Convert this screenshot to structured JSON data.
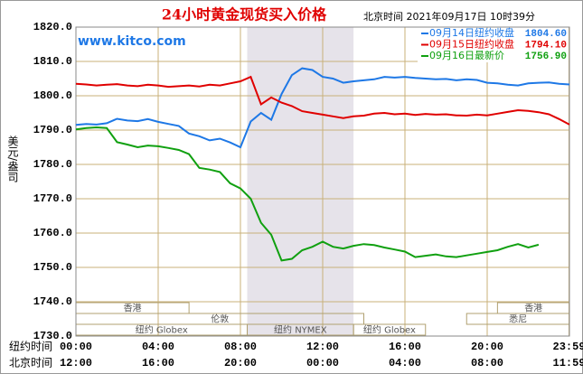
{
  "chart_data": {
    "type": "line",
    "title": "24小时黄金现货买入价格",
    "timestamp": "北京时间  2021年09月17日 10时39分",
    "site": "www.kitco.com",
    "y_label": "美元/盎司",
    "x_label": "纽约时间",
    "x2_label": "北京时间",
    "xlim": [
      0,
      24
    ],
    "ylim": [
      1730,
      1820
    ],
    "yticks": [
      {
        "value": 1820,
        "label": "1820.0"
      },
      {
        "value": 1810,
        "label": "1810.0"
      },
      {
        "value": 1800,
        "label": "1800.0"
      },
      {
        "value": 1790,
        "label": "1790.0"
      },
      {
        "value": 1780,
        "label": "1780.0"
      },
      {
        "value": 1770,
        "label": "1770.0"
      },
      {
        "value": 1760,
        "label": "1760.0"
      },
      {
        "value": 1750,
        "label": "1750.0"
      },
      {
        "value": 1740,
        "label": "1740.0"
      },
      {
        "value": 1730,
        "label": "1730.0"
      }
    ],
    "xticks": [
      {
        "value": 0,
        "label": "00:00"
      },
      {
        "value": 4,
        "label": "04:00"
      },
      {
        "value": 8,
        "label": "08:00"
      },
      {
        "value": 12,
        "label": "12:00"
      },
      {
        "value": 16,
        "label": "16:00"
      },
      {
        "value": 20,
        "label": "20:00"
      },
      {
        "value": 23.98,
        "label": "23:59"
      }
    ],
    "x2ticks": [
      {
        "value": 0,
        "label": "12:00"
      },
      {
        "value": 4,
        "label": "16:00"
      },
      {
        "value": 8,
        "label": "20:00"
      },
      {
        "value": 12,
        "label": "00:00"
      },
      {
        "value": 16,
        "label": "04:00"
      },
      {
        "value": 20,
        "label": "08:00"
      },
      {
        "value": 23.98,
        "label": "11:59"
      }
    ],
    "grid": true,
    "shaded": [
      8.33,
      13.5
    ],
    "session_rows": [
      [
        {
          "label": "香港",
          "start": 0,
          "end": 5.5
        },
        {
          "label": "香港",
          "start": 20.5,
          "end": 24
        }
      ],
      [
        {
          "label": "伦敦",
          "start": 0,
          "end": 14
        },
        {
          "label": "悉尼",
          "start": 19,
          "end": 24
        }
      ],
      [
        {
          "label": "纽约 Globex",
          "start": 0,
          "end": 8.33
        },
        {
          "label": "纽约 NYMEX",
          "start": 8.33,
          "end": 13.5
        },
        {
          "label": "纽约 Globex",
          "start": 13.5,
          "end": 17
        }
      ]
    ],
    "x": [
      0,
      0.5,
      1,
      1.5,
      2,
      2.5,
      3,
      3.5,
      4,
      4.5,
      5,
      5.5,
      6,
      6.5,
      7,
      7.5,
      8,
      8.5,
      9,
      9.5,
      10,
      10.5,
      11,
      11.5,
      12,
      12.5,
      13,
      13.5,
      14,
      14.5,
      15,
      15.5,
      16,
      16.5,
      17,
      17.5,
      18,
      18.5,
      19,
      19.5,
      20,
      20.5,
      21,
      21.5,
      22,
      22.5,
      23,
      23.5,
      24
    ],
    "series": [
      {
        "name": "09月14日",
        "legend_label": "纽约收盘",
        "legend_value": "1804.60",
        "color": "#1e78e6",
        "values": [
          1791.5,
          1791.8,
          1791.6,
          1792.0,
          1793.3,
          1792.8,
          1792.6,
          1793.2,
          1792.4,
          1791.8,
          1791.2,
          1789.0,
          1788.2,
          1787.0,
          1787.5,
          1786.4,
          1785.0,
          1792.5,
          1795.0,
          1793.0,
          1800.5,
          1806.0,
          1808.0,
          1807.5,
          1805.5,
          1805.0,
          1803.8,
          1804.2,
          1804.5,
          1804.8,
          1805.5,
          1805.3,
          1805.5,
          1805.2,
          1805.0,
          1804.8,
          1804.9,
          1804.5,
          1804.8,
          1804.6,
          1803.8,
          1803.6,
          1803.2,
          1803.0,
          1803.6,
          1803.8,
          1803.9,
          1803.5,
          1803.3
        ]
      },
      {
        "name": "09月15日",
        "legend_label": "纽约收盘",
        "legend_value": "1794.10",
        "color": "#e00000",
        "values": [
          1803.5,
          1803.3,
          1803.0,
          1803.2,
          1803.4,
          1803.0,
          1802.8,
          1803.2,
          1803.0,
          1802.6,
          1802.8,
          1803.0,
          1802.7,
          1803.2,
          1803.0,
          1803.6,
          1804.2,
          1805.5,
          1797.5,
          1799.5,
          1798.0,
          1797.0,
          1795.5,
          1795.0,
          1794.5,
          1794.0,
          1793.5,
          1794.0,
          1794.2,
          1794.8,
          1795.0,
          1794.6,
          1794.8,
          1794.4,
          1794.7,
          1794.5,
          1794.6,
          1794.3,
          1794.2,
          1794.5,
          1794.3,
          1794.8,
          1795.3,
          1795.8,
          1795.6,
          1795.2,
          1794.6,
          1793.2,
          1791.6
        ]
      },
      {
        "name": "09月16日",
        "legend_label": "最新价",
        "legend_value": "1756.90",
        "color": "#10a010",
        "values": [
          1790.2,
          1790.6,
          1790.8,
          1790.6,
          1786.5,
          1785.8,
          1785.0,
          1785.5,
          1785.3,
          1784.8,
          1784.2,
          1783.0,
          1779.0,
          1778.5,
          1777.8,
          1774.5,
          1773.0,
          1770.0,
          1763.0,
          1759.5,
          1752.0,
          1752.5,
          1755.0,
          1756.0,
          1757.5,
          1756.0,
          1755.5,
          1756.3,
          1756.8,
          1756.5,
          1755.8,
          1755.2,
          1754.6,
          1753.0,
          1753.4,
          1753.8,
          1753.2,
          1753.0,
          1753.5,
          1754.0,
          1754.5,
          1755.0,
          1756.0,
          1756.8,
          1755.8,
          1756.6,
          null,
          null,
          null
        ]
      }
    ]
  }
}
